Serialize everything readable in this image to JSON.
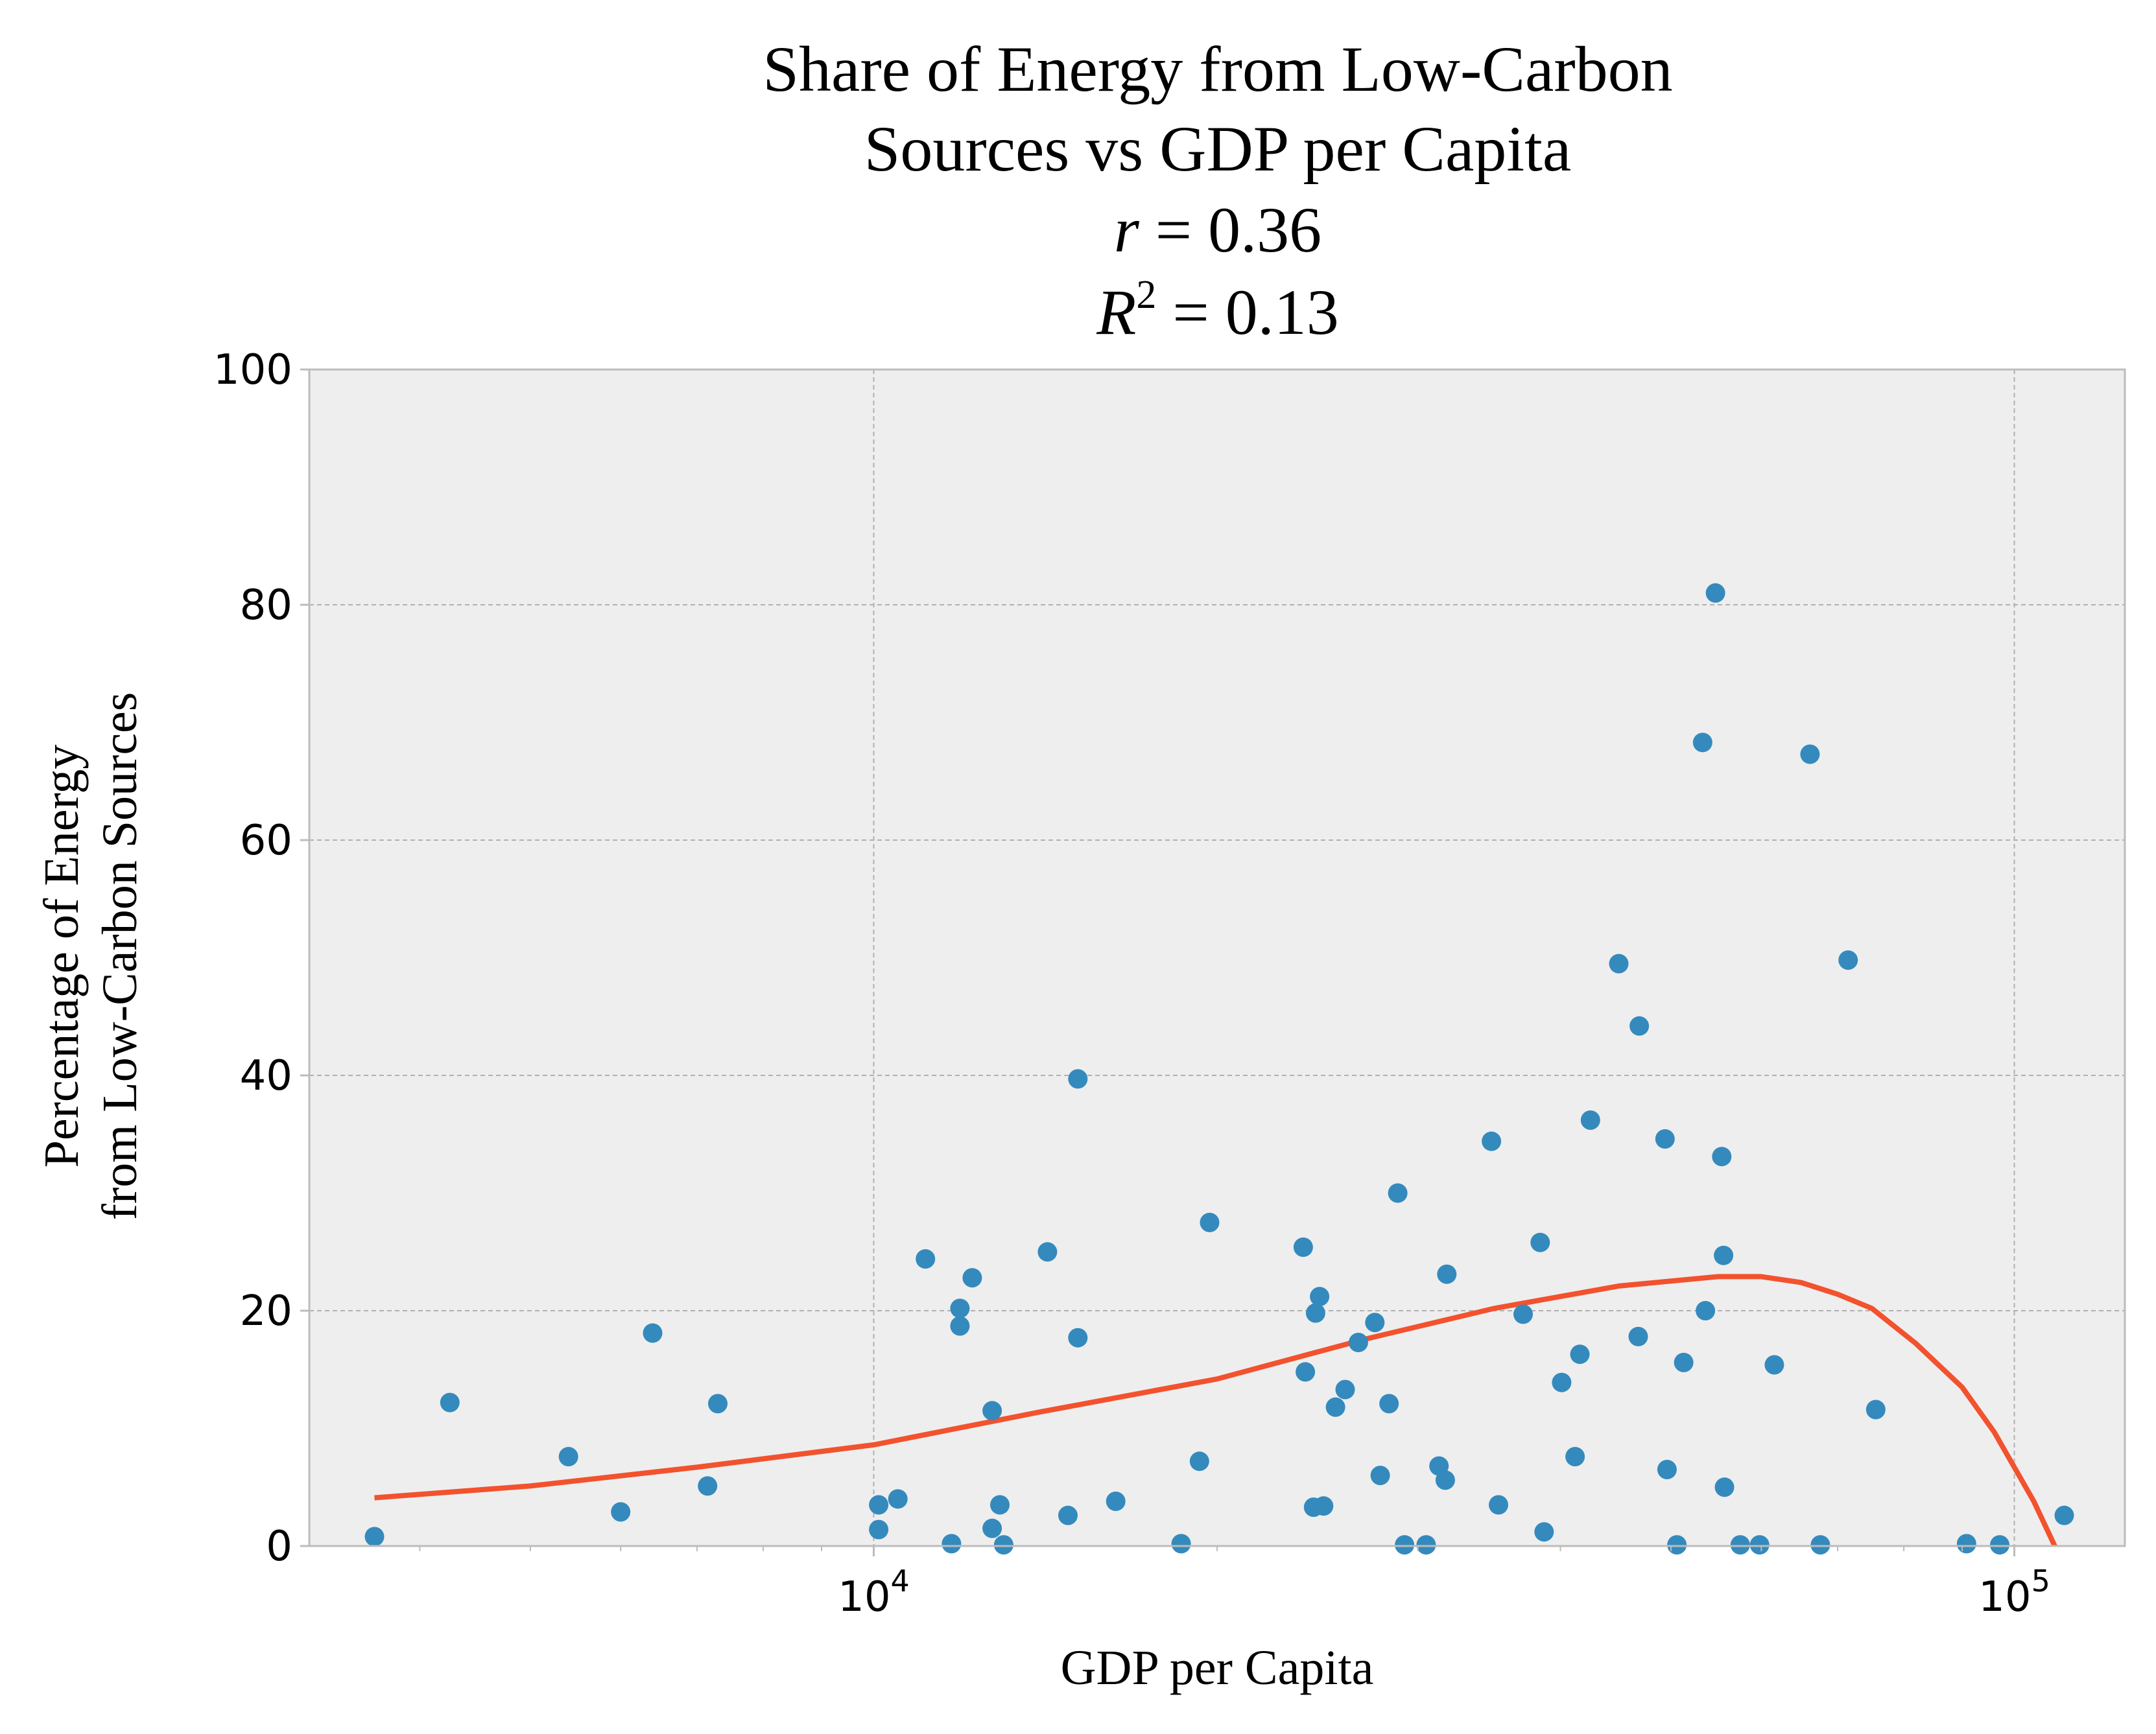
{
  "chart_data": {
    "type": "scatter",
    "title_lines": [
      "Share of Energy from Low-Carbon",
      "Sources vs GDP per Capita"
    ],
    "stat_r": {
      "symbol": "r",
      "value": " = 0.36"
    },
    "stat_r2": {
      "symbol": "R",
      "exponent": "2",
      "value": " = 0.13"
    },
    "xlabel": "GDP per Capita",
    "ylabel_lines": [
      "Percentage of Energy",
      "from Low-Carbon Sources"
    ],
    "x_scale": "log",
    "xlim": [
      3200,
      125000
    ],
    "ylim": [
      0,
      100
    ],
    "x_major_ticks": [
      {
        "value": 10000,
        "base": "10",
        "exp": "4"
      },
      {
        "value": 100000,
        "base": "10",
        "exp": "5"
      }
    ],
    "x_minor_ticks": [
      4000,
      5000,
      6000,
      7000,
      8000,
      9000,
      20000,
      30000,
      40000,
      50000,
      60000,
      70000,
      80000,
      90000
    ],
    "y_ticks": [
      0,
      20,
      40,
      60,
      80,
      100
    ],
    "grid": true,
    "colors": {
      "background": "#eeeeee",
      "scatter": "#348abd",
      "trend": "#f2522e",
      "grid": "#b0b0b0",
      "spine": "#bcbcbc"
    },
    "series": [
      {
        "type": "scatter",
        "points": [
          [
            3650,
            0.8
          ],
          [
            4250,
            12.2
          ],
          [
            5400,
            7.6
          ],
          [
            6000,
            2.9
          ],
          [
            6400,
            18.1
          ],
          [
            7150,
            5.1
          ],
          [
            7300,
            12.1
          ],
          [
            10100,
            1.4
          ],
          [
            10100,
            3.5
          ],
          [
            10500,
            4.0
          ],
          [
            11100,
            24.4
          ],
          [
            11700,
            0.2
          ],
          [
            11900,
            20.2
          ],
          [
            11900,
            18.7
          ],
          [
            12200,
            22.8
          ],
          [
            12700,
            1.5
          ],
          [
            12700,
            11.5
          ],
          [
            12900,
            3.5
          ],
          [
            13000,
            0.1
          ],
          [
            14200,
            25.0
          ],
          [
            14800,
            2.6
          ],
          [
            15100,
            17.7
          ],
          [
            15100,
            39.7
          ],
          [
            16300,
            3.8
          ],
          [
            18600,
            0.2
          ],
          [
            19300,
            7.2
          ],
          [
            19700,
            27.5
          ],
          [
            23800,
            25.4
          ],
          [
            23900,
            14.8
          ],
          [
            24300,
            3.3
          ],
          [
            24400,
            19.8
          ],
          [
            24600,
            21.2
          ],
          [
            24800,
            3.4
          ],
          [
            25400,
            11.8
          ],
          [
            25900,
            13.3
          ],
          [
            26600,
            17.3
          ],
          [
            27500,
            19.0
          ],
          [
            27800,
            6.0
          ],
          [
            28300,
            12.1
          ],
          [
            28800,
            30.0
          ],
          [
            29200,
            0.1
          ],
          [
            30500,
            0.1
          ],
          [
            31300,
            6.8
          ],
          [
            31700,
            5.6
          ],
          [
            31800,
            23.1
          ],
          [
            34800,
            34.4
          ],
          [
            35300,
            3.5
          ],
          [
            37100,
            19.7
          ],
          [
            38400,
            25.8
          ],
          [
            38700,
            1.2
          ],
          [
            40100,
            13.9
          ],
          [
            41200,
            7.6
          ],
          [
            41600,
            16.3
          ],
          [
            42500,
            36.2
          ],
          [
            45000,
            49.5
          ],
          [
            46800,
            17.8
          ],
          [
            46900,
            44.2
          ],
          [
            49400,
            34.6
          ],
          [
            49600,
            6.5
          ],
          [
            50600,
            0.1
          ],
          [
            51300,
            15.6
          ],
          [
            53300,
            68.3
          ],
          [
            53600,
            20.0
          ],
          [
            54700,
            81.0
          ],
          [
            55400,
            33.1
          ],
          [
            55700,
            5.0
          ],
          [
            55600,
            24.7
          ],
          [
            57500,
            0.1
          ],
          [
            59800,
            0.1
          ],
          [
            61600,
            15.4
          ],
          [
            66200,
            67.3
          ],
          [
            67600,
            0.1
          ],
          [
            71500,
            49.8
          ],
          [
            75600,
            11.6
          ],
          [
            90800,
            0.2
          ],
          [
            97100,
            0.1
          ],
          [
            110600,
            2.6
          ]
        ]
      },
      {
        "type": "line",
        "points": [
          [
            3650,
            4.1
          ],
          [
            5000,
            5.1
          ],
          [
            7000,
            6.7
          ],
          [
            10000,
            8.6
          ],
          [
            14000,
            11.4
          ],
          [
            20000,
            14.2
          ],
          [
            27000,
            17.6
          ],
          [
            35000,
            20.2
          ],
          [
            45000,
            22.1
          ],
          [
            55000,
            22.9
          ],
          [
            60000,
            22.9
          ],
          [
            65000,
            22.4
          ],
          [
            70000,
            21.4
          ],
          [
            75000,
            20.2
          ],
          [
            82000,
            17.2
          ],
          [
            90000,
            13.5
          ],
          [
            96000,
            9.7
          ],
          [
            104000,
            3.8
          ],
          [
            108500,
            0.0
          ]
        ]
      }
    ]
  }
}
